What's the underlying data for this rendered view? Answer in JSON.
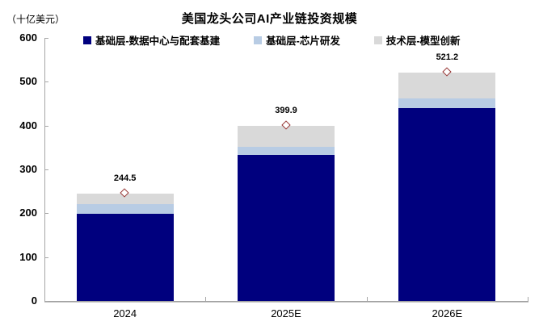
{
  "title": "美国龙头公司AI产业链投资规模",
  "unit_label": "（十亿美元）",
  "colors": {
    "series_dark_blue": "#00007E",
    "series_light_blue": "#B8CCE4",
    "series_gray": "#D9D9D9",
    "marker_stroke": "#963634",
    "marker_fill": "#FFFFFF",
    "axis_line": "#A6A6A6",
    "text": "#000000",
    "background": "#FFFFFF"
  },
  "chart_data": {
    "type": "bar",
    "stacked": true,
    "title": "美国龙头公司AI产业链投资规模",
    "ylabel": "（十亿美元）",
    "xlabel": "",
    "categories": [
      "2024",
      "2025E",
      "2026E"
    ],
    "series": [
      {
        "name": "基础层-数据中心与配套基建",
        "color": "#00007E",
        "values": [
          198.5,
          333.0,
          440.0
        ]
      },
      {
        "name": "基础层-芯片研发",
        "color": "#B8CCE4",
        "values": [
          22.0,
          18.0,
          22.0
        ]
      },
      {
        "name": "技术层-模型创新",
        "color": "#D9D9D9",
        "values": [
          24.0,
          48.9,
          59.2
        ]
      }
    ],
    "totals": [
      244.5,
      399.9,
      521.2
    ],
    "total_labels": [
      "244.5",
      "399.9",
      "521.2"
    ],
    "total_marker": {
      "shape": "diamond",
      "fill": "#FFFFFF",
      "stroke": "#963634"
    },
    "ylim": [
      0,
      600
    ],
    "yticks": [
      0,
      100,
      200,
      300,
      400,
      500,
      600
    ],
    "grid": false,
    "legend_position": "top"
  }
}
